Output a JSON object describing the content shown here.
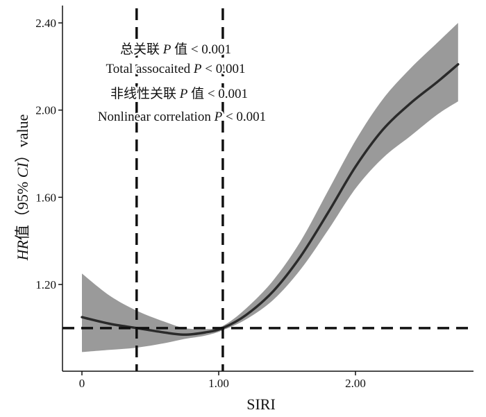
{
  "chart_data": {
    "type": "line",
    "title": "",
    "xlabel": "SIRI",
    "ylabel": "HR值（95% CI）value",
    "ylabel_parts": {
      "italic_prefix": "HR",
      "after_prefix": "值（95% ",
      "italic_mid": "CI",
      "suffix": "）value"
    },
    "xlim": [
      -0.1,
      2.9
    ],
    "ylim": [
      0.88,
      2.46
    ],
    "x_ticks": [
      0,
      1.0,
      2.0
    ],
    "x_tick_labels": [
      "0",
      "1.00",
      "2.00"
    ],
    "y_ticks": [
      1.2,
      1.6,
      2.0,
      2.4
    ],
    "y_tick_labels": [
      "1.20",
      "1.60",
      "2.00",
      "2.40"
    ],
    "reference_lines": {
      "horizontal_y": 1.0,
      "vertical_x": [
        0.4,
        1.03
      ]
    },
    "series": [
      {
        "name": "HR",
        "x": [
          0,
          0.2,
          0.4,
          0.6,
          0.75,
          0.9,
          1.03,
          1.2,
          1.4,
          1.6,
          1.8,
          2.0,
          2.2,
          2.4,
          2.6,
          2.75
        ],
        "y": [
          1.05,
          1.02,
          1.0,
          0.98,
          0.97,
          0.98,
          1.0,
          1.06,
          1.17,
          1.33,
          1.53,
          1.74,
          1.91,
          2.03,
          2.13,
          2.21
        ],
        "ci_lower": [
          0.89,
          0.9,
          0.91,
          0.93,
          0.95,
          0.965,
          0.99,
          1.04,
          1.13,
          1.27,
          1.45,
          1.64,
          1.78,
          1.88,
          1.98,
          2.04
        ],
        "ci_upper": [
          1.25,
          1.15,
          1.08,
          1.03,
          1.0,
          0.995,
          1.01,
          1.09,
          1.22,
          1.4,
          1.63,
          1.86,
          2.05,
          2.19,
          2.31,
          2.4
        ]
      }
    ],
    "annotations": [
      {
        "lines": [
          "总关联 ",
          "P",
          " 值 < 0.001"
        ],
        "text": "总关联 P 值 < 0.001"
      },
      {
        "text": "Total assocaited P < 0.001"
      },
      {
        "text": "非线性关联 P 值 < 0.001"
      },
      {
        "text": "Nonlinear correlation P < 0.001"
      }
    ],
    "colors": {
      "line": "#2a2a2a",
      "band": "#9a9a9a",
      "axis": "#111111",
      "ref": "#111111"
    }
  }
}
